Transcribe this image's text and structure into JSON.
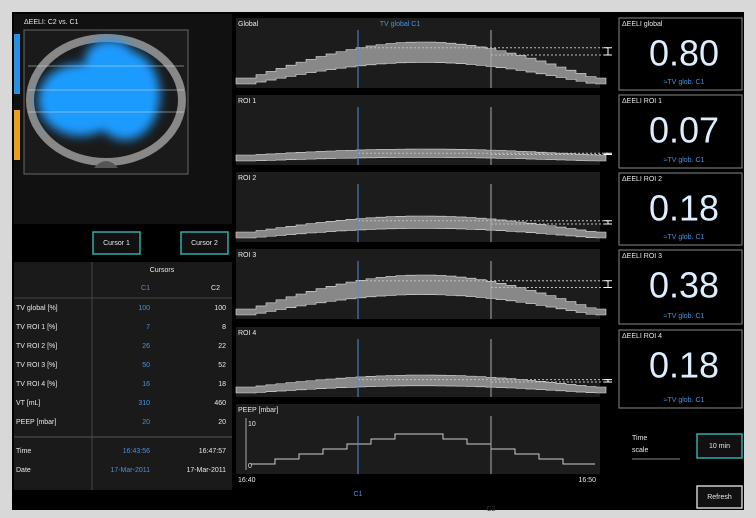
{
  "image_panel": {
    "title": "ΔEELI: C2 vs. C1"
  },
  "buttons": {
    "cursor1": "Cursor 1",
    "cursor2": "Cursor 2",
    "time_scale_value": "10 min",
    "refresh": "Refresh"
  },
  "table": {
    "header": "Cursors",
    "columns": [
      "C1",
      "C2"
    ],
    "rows": [
      [
        "TV global [%]",
        100,
        100
      ],
      [
        "TV ROI 1 [%]",
        7,
        8
      ],
      [
        "TV ROI 2 [%]",
        26,
        22
      ],
      [
        "TV ROI 3 [%]",
        50,
        52
      ],
      [
        "TV ROI 4 [%]",
        16,
        18
      ],
      [
        "VT [mL]",
        310,
        460
      ],
      [
        "PEEP [mbar]",
        20,
        20
      ],
      [
        "Time",
        "16:43:56",
        "16:47:57"
      ],
      [
        "Date",
        "17-Mar-2011",
        "17-Mar-2011"
      ]
    ]
  },
  "graphs": [
    {
      "label": "Global",
      "annotation": "TV global C1"
    },
    {
      "label": "ROI 1"
    },
    {
      "label": "ROI 2"
    },
    {
      "label": "ROI 3"
    },
    {
      "label": "ROI 4"
    },
    {
      "label": "PEEP [mbar]",
      "yticks": [
        "10",
        "0"
      ],
      "xticks": [
        "16:40",
        "16:50"
      ]
    }
  ],
  "cursor_labels": [
    "C1",
    "C2"
  ],
  "eeli_panels": [
    {
      "title": "ΔEELI global",
      "value": "0.80",
      "note": "≈TV glob. C1"
    },
    {
      "title": "ΔEELI ROI 1",
      "value": "0.07",
      "note": "≈TV glob. C1"
    },
    {
      "title": "ΔEELI ROI 2",
      "value": "0.18",
      "note": "≈TV glob. C1"
    },
    {
      "title": "ΔEELI ROI 3",
      "value": "0.38",
      "note": "≈TV glob. C1"
    },
    {
      "title": "ΔEELI ROI 4",
      "value": "0.18",
      "note": "≈TV glob. C1"
    }
  ],
  "time_scale_label": "Time scale"
}
